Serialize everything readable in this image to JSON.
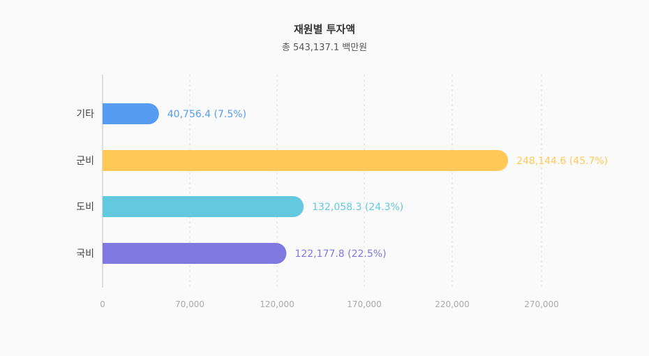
{
  "chart_data": {
    "type": "bar",
    "orientation": "horizontal",
    "title": "재원별 투자액",
    "subtitle": "총 543,137.1 백만원",
    "categories": [
      "기타",
      "군비",
      "도비",
      "국비"
    ],
    "values": [
      40756.4,
      248144.6,
      132058.3,
      122177.8
    ],
    "data_labels": [
      "40,756.4 (7.5%)",
      "248,144.6 (45.7%)",
      "132,058.3 (24.3%)",
      "122,177.8 (22.5%)"
    ],
    "colors": [
      "#559cf2",
      "#ffc857",
      "#63c9de",
      "#7f79e0"
    ],
    "x_ticks": [
      0,
      70000,
      120000,
      170000,
      220000,
      270000
    ],
    "x_tick_labels": [
      "0",
      "70,000",
      "120,000",
      "170,000",
      "220,000",
      "270,000"
    ],
    "grid": "vertical dashed",
    "legend": "none"
  }
}
